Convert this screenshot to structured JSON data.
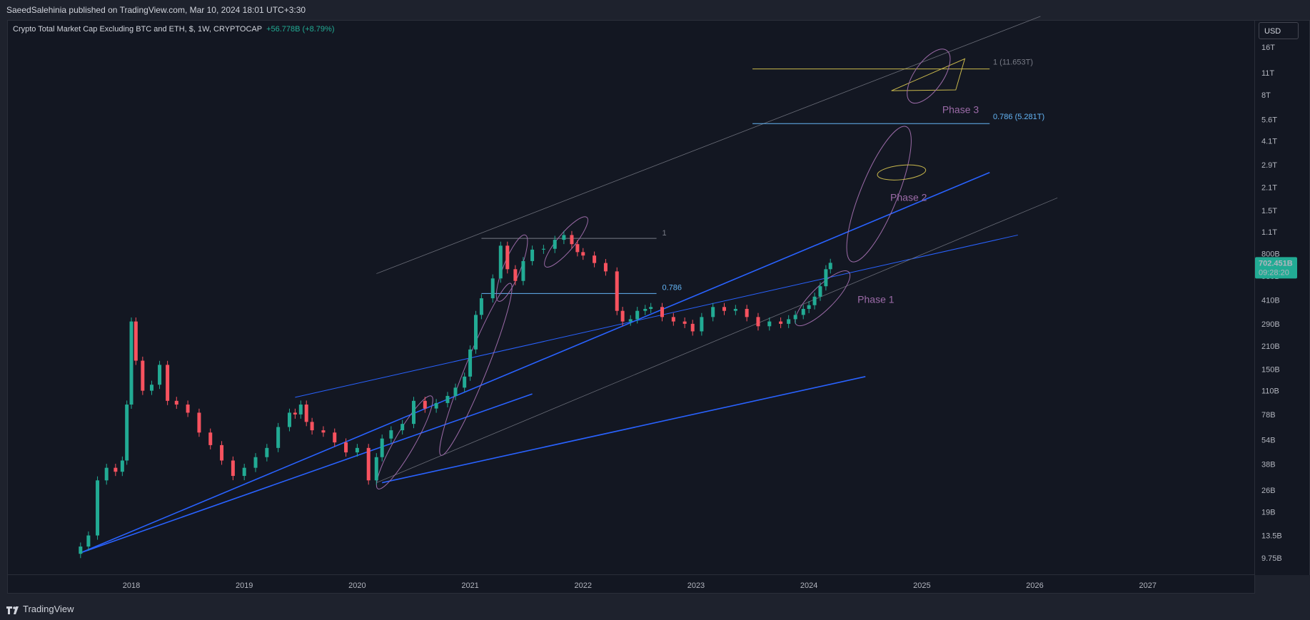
{
  "header": {
    "published_by": "SaeedSalehinia published on TradingView.com, Mar 10, 2024 18:01 UTC+3:30"
  },
  "legend": {
    "symbol": "Crypto Total Market Cap Excluding BTC and ETH, $, 1W, CRYPTOCAP",
    "change": "+56.778B (+8.79%)"
  },
  "price_scale": {
    "currency": "USD",
    "current_price": "702.451B",
    "countdown": "09:28:20",
    "current_price_color": "#22ab94"
  },
  "footer": {
    "brand": "TradingView"
  },
  "chart_data": {
    "type": "line",
    "title": "Crypto Total Market Cap Excluding BTC and ETH, $, 1W, CRYPTOCAP",
    "y_scale": "log",
    "y_ticks": [
      "16T",
      "11T",
      "8T",
      "5.6T",
      "4.1T",
      "2.9T",
      "2.1T",
      "1.5T",
      "1.1T",
      "800B",
      "580B",
      "410B",
      "290B",
      "210B",
      "150B",
      "110B",
      "78B",
      "54B",
      "38B",
      "26B",
      "19B",
      "13.5B",
      "9.75B"
    ],
    "y_tick_values_billion": [
      16000,
      11000,
      8000,
      5600,
      4100,
      2900,
      2100,
      1500,
      1100,
      800,
      580,
      410,
      290,
      210,
      150,
      110,
      78,
      54,
      38,
      26,
      19,
      13.5,
      9.75
    ],
    "x_ticks": [
      "2018",
      "2019",
      "2020",
      "2021",
      "2022",
      "2023",
      "2024",
      "2025",
      "2026",
      "2027"
    ],
    "x_tick_years": [
      2018,
      2019,
      2020,
      2021,
      2022,
      2023,
      2024,
      2025,
      2026,
      2027
    ],
    "xlim": [
      2016.9,
      2027.95
    ],
    "up_color": "#22ab94",
    "down_color": "#f7525f",
    "series": [
      {
        "values_x": [
          2017.55,
          2017.62,
          2017.7,
          2017.78,
          2017.86,
          2017.92,
          2017.96,
          2018.0,
          2018.04,
          2018.1,
          2018.18,
          2018.25,
          2018.32,
          2018.4,
          2018.5,
          2018.6,
          2018.7,
          2018.8,
          2018.9,
          2019.0,
          2019.1,
          2019.2,
          2019.3,
          2019.4,
          2019.45,
          2019.5,
          2019.55,
          2019.6,
          2019.7,
          2019.8,
          2019.9,
          2020.0,
          2020.1,
          2020.17,
          2020.22,
          2020.3,
          2020.4,
          2020.5,
          2020.6,
          2020.7,
          2020.8,
          2020.87,
          2020.95,
          2021.0,
          2021.05,
          2021.1,
          2021.2,
          2021.27,
          2021.33,
          2021.4,
          2021.47,
          2021.55,
          2021.65,
          2021.75,
          2021.83,
          2021.9,
          2021.95,
          2022.0,
          2022.1,
          2022.2,
          2022.3,
          2022.35,
          2022.42,
          2022.48,
          2022.55,
          2022.6,
          2022.7,
          2022.8,
          2022.9,
          2022.97,
          2023.05,
          2023.15,
          2023.25,
          2023.35,
          2023.45,
          2023.55,
          2023.65,
          2023.75,
          2023.82,
          2023.88,
          2023.95,
          2024.0,
          2024.05,
          2024.1,
          2024.15,
          2024.19
        ],
        "values_y_billion": [
          11.5,
          13.5,
          30,
          36,
          34,
          40,
          90,
          300,
          170,
          110,
          120,
          160,
          95,
          90,
          80,
          60,
          50,
          40,
          32,
          36,
          42,
          48,
          65,
          80,
          78,
          90,
          70,
          62,
          60,
          52,
          45,
          48,
          30,
          42,
          55,
          62,
          68,
          95,
          85,
          92,
          102,
          115,
          135,
          200,
          330,
          420,
          560,
          900,
          640,
          540,
          720,
          850,
          860,
          980,
          1050,
          920,
          820,
          780,
          700,
          620,
          350,
          300,
          310,
          350,
          360,
          370,
          320,
          300,
          290,
          260,
          320,
          370,
          350,
          360,
          320,
          280,
          300,
          290,
          310,
          330,
          360,
          380,
          430,
          500,
          640,
          702
        ]
      }
    ],
    "annotations": {
      "fib_upper_level_1_label": "1 (11.653T)",
      "fib_upper_level_0786_label": "0.786 (5.281T)",
      "fib_lower_level_1_label": "1",
      "fib_lower_level_0786_label": "0.786",
      "phase_labels": [
        "Phase 1",
        "Phase 2",
        "Phase 3"
      ],
      "phase_color": "#9c6ba8",
      "trendline_color": "#2962ff",
      "fib_line_color_1": "#787b86",
      "fib_line_color_0786": "#64b5f6",
      "target_triangle_color": "#c9b84c"
    }
  }
}
